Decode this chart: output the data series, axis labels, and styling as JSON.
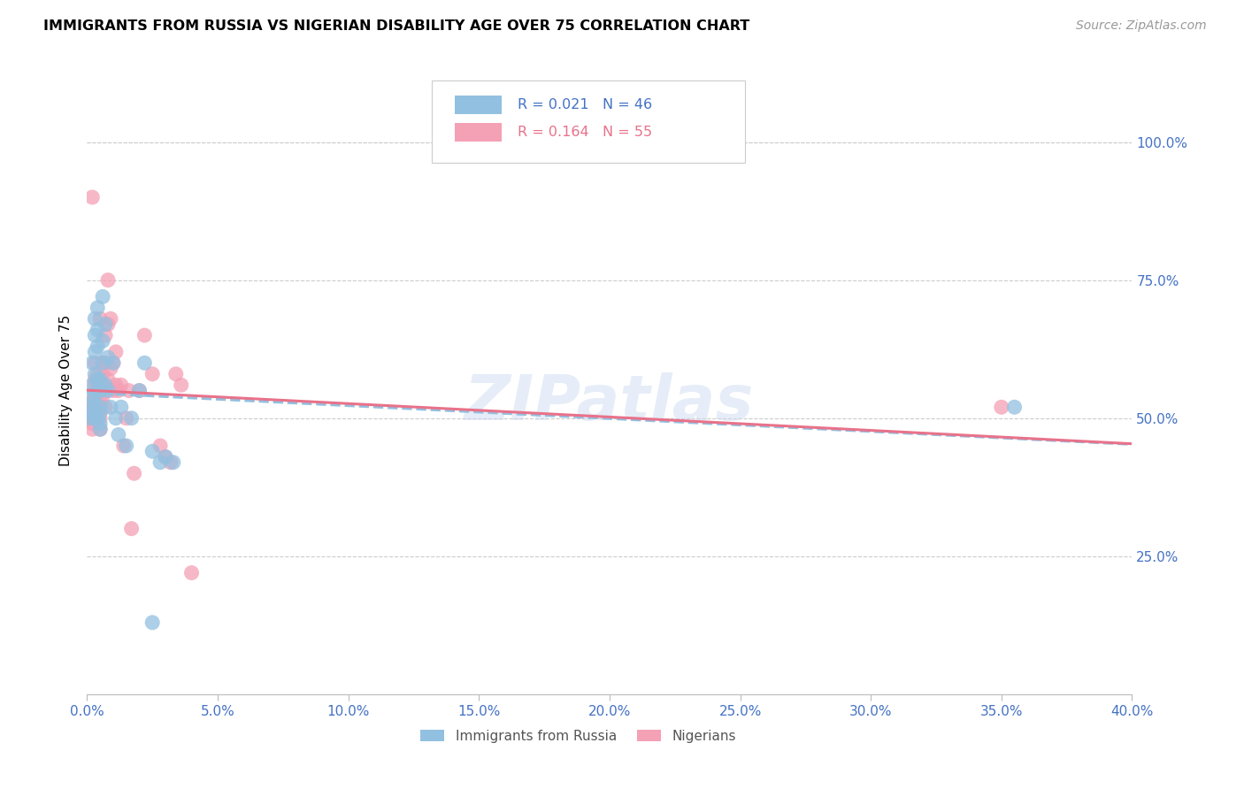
{
  "title": "IMMIGRANTS FROM RUSSIA VS NIGERIAN DISABILITY AGE OVER 75 CORRELATION CHART",
  "source": "Source: ZipAtlas.com",
  "ylabel": "Disability Age Over 75",
  "right_ytick_labels": [
    "100.0%",
    "75.0%",
    "50.0%",
    "25.0%"
  ],
  "right_ytick_values": [
    1.0,
    0.75,
    0.5,
    0.25
  ],
  "xlim": [
    0.0,
    0.4
  ],
  "ylim": [
    0.0,
    1.1
  ],
  "legend1_label": "Immigrants from Russia",
  "legend2_label": "Nigerians",
  "r1": 0.021,
  "n1": 46,
  "r2": 0.164,
  "n2": 55,
  "color_russia": "#92C0E0",
  "color_nigeria": "#F4A0B5",
  "color_russia_line": "#92C0E0",
  "color_nigeria_line": "#E8728A",
  "color_blue": "#4472C4",
  "watermark": "ZIPatlas",
  "russia_x": [
    0.001,
    0.001,
    0.002,
    0.002,
    0.002,
    0.002,
    0.003,
    0.003,
    0.003,
    0.003,
    0.003,
    0.003,
    0.004,
    0.004,
    0.004,
    0.004,
    0.004,
    0.004,
    0.005,
    0.005,
    0.005,
    0.005,
    0.005,
    0.005,
    0.006,
    0.006,
    0.006,
    0.007,
    0.007,
    0.008,
    0.008,
    0.009,
    0.01,
    0.011,
    0.012,
    0.013,
    0.015,
    0.017,
    0.02,
    0.022,
    0.025,
    0.028,
    0.03,
    0.033,
    0.355,
    0.025
  ],
  "russia_y": [
    0.5,
    0.51,
    0.52,
    0.54,
    0.56,
    0.6,
    0.58,
    0.62,
    0.65,
    0.68,
    0.5,
    0.53,
    0.55,
    0.57,
    0.63,
    0.66,
    0.7,
    0.5,
    0.49,
    0.51,
    0.52,
    0.55,
    0.48,
    0.57,
    0.6,
    0.64,
    0.72,
    0.56,
    0.67,
    0.61,
    0.55,
    0.52,
    0.6,
    0.5,
    0.47,
    0.52,
    0.45,
    0.5,
    0.55,
    0.6,
    0.44,
    0.42,
    0.43,
    0.42,
    0.52,
    0.13
  ],
  "nigeria_x": [
    0.001,
    0.001,
    0.002,
    0.002,
    0.002,
    0.002,
    0.003,
    0.003,
    0.003,
    0.003,
    0.003,
    0.004,
    0.004,
    0.004,
    0.004,
    0.005,
    0.005,
    0.005,
    0.005,
    0.005,
    0.006,
    0.006,
    0.006,
    0.006,
    0.007,
    0.007,
    0.007,
    0.007,
    0.008,
    0.008,
    0.008,
    0.009,
    0.009,
    0.01,
    0.01,
    0.011,
    0.011,
    0.012,
    0.013,
    0.014,
    0.015,
    0.016,
    0.017,
    0.018,
    0.02,
    0.022,
    0.025,
    0.028,
    0.03,
    0.032,
    0.034,
    0.036,
    0.04,
    0.35,
    0.002
  ],
  "nigeria_y": [
    0.5,
    0.51,
    0.49,
    0.52,
    0.48,
    0.53,
    0.54,
    0.5,
    0.56,
    0.57,
    0.6,
    0.52,
    0.55,
    0.58,
    0.51,
    0.5,
    0.53,
    0.48,
    0.55,
    0.68,
    0.58,
    0.54,
    0.6,
    0.56,
    0.6,
    0.52,
    0.65,
    0.55,
    0.57,
    0.67,
    0.75,
    0.59,
    0.68,
    0.6,
    0.55,
    0.56,
    0.62,
    0.55,
    0.56,
    0.45,
    0.5,
    0.55,
    0.3,
    0.4,
    0.55,
    0.65,
    0.58,
    0.45,
    0.43,
    0.42,
    0.58,
    0.56,
    0.22,
    0.52,
    0.9
  ]
}
